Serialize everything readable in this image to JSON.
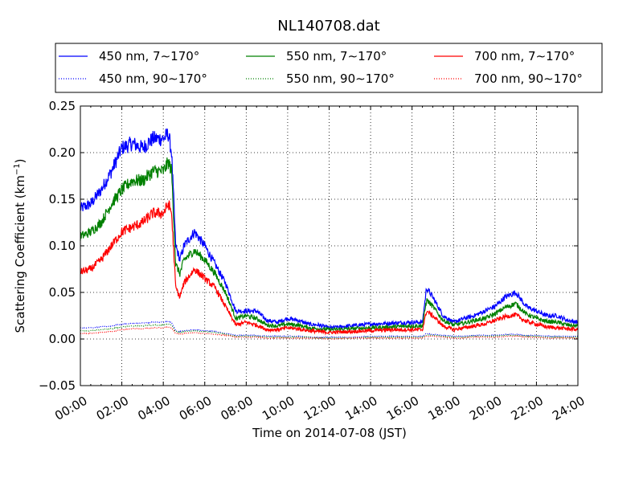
{
  "chart_data": {
    "type": "line",
    "title": "NL140708.dat",
    "xlabel": "Time on 2014-07-08 (JST)",
    "ylabel": "Scattering Coefficient (km",
    "ylabel_sup": "−1",
    "ylabel_tail": ")",
    "xlim": [
      "00:00",
      "24:00"
    ],
    "ylim": [
      -0.05,
      0.25
    ],
    "grid": true,
    "legend_position": "top",
    "x_ticks": [
      "00:00",
      "02:00",
      "04:00",
      "06:00",
      "08:00",
      "10:00",
      "12:00",
      "14:00",
      "16:00",
      "18:00",
      "20:00",
      "22:00",
      "24:00"
    ],
    "y_ticks": [
      "−0.05",
      "0.00",
      "0.05",
      "0.10",
      "0.15",
      "0.20",
      "0.25"
    ],
    "x_hours": [
      0,
      0.5,
      1,
      1.5,
      2,
      2.5,
      3,
      3.5,
      4,
      4.25,
      4.4,
      4.6,
      4.8,
      5,
      5.5,
      6,
      6.5,
      7,
      7.5,
      8,
      8.5,
      9,
      9.5,
      10,
      10.5,
      11,
      11.5,
      12,
      13,
      14,
      15,
      16,
      16.3,
      16.5,
      16.7,
      17,
      17.5,
      18,
      18.5,
      19,
      19.5,
      20,
      20.5,
      21,
      21.5,
      22,
      22.5,
      23,
      23.5,
      24
    ],
    "series": [
      {
        "name": "450 nm, 7∼170°",
        "color": "#0000ff",
        "style": "solid",
        "values": [
          0.14,
          0.145,
          0.16,
          0.18,
          0.205,
          0.21,
          0.205,
          0.215,
          0.215,
          0.22,
          0.2,
          0.1,
          0.085,
          0.1,
          0.115,
          0.1,
          0.08,
          0.06,
          0.03,
          0.03,
          0.03,
          0.02,
          0.018,
          0.022,
          0.02,
          0.016,
          0.015,
          0.012,
          0.014,
          0.016,
          0.017,
          0.018,
          0.018,
          0.018,
          0.055,
          0.045,
          0.025,
          0.018,
          0.022,
          0.025,
          0.03,
          0.035,
          0.045,
          0.05,
          0.035,
          0.03,
          0.025,
          0.025,
          0.02,
          0.018
        ]
      },
      {
        "name": "550 nm, 7∼170°",
        "color": "#008000",
        "style": "solid",
        "values": [
          0.11,
          0.115,
          0.125,
          0.145,
          0.16,
          0.17,
          0.17,
          0.18,
          0.18,
          0.19,
          0.18,
          0.08,
          0.07,
          0.085,
          0.095,
          0.085,
          0.07,
          0.05,
          0.022,
          0.025,
          0.022,
          0.015,
          0.014,
          0.016,
          0.015,
          0.012,
          0.011,
          0.01,
          0.011,
          0.012,
          0.013,
          0.014,
          0.014,
          0.014,
          0.042,
          0.035,
          0.02,
          0.015,
          0.017,
          0.02,
          0.022,
          0.027,
          0.034,
          0.038,
          0.027,
          0.022,
          0.019,
          0.018,
          0.015,
          0.014
        ]
      },
      {
        "name": "700 nm, 7∼170°",
        "color": "#ff0000",
        "style": "solid",
        "values": [
          0.072,
          0.075,
          0.085,
          0.1,
          0.115,
          0.12,
          0.125,
          0.135,
          0.135,
          0.145,
          0.135,
          0.055,
          0.045,
          0.06,
          0.075,
          0.065,
          0.055,
          0.035,
          0.015,
          0.018,
          0.015,
          0.01,
          0.01,
          0.012,
          0.011,
          0.009,
          0.008,
          0.007,
          0.008,
          0.009,
          0.01,
          0.01,
          0.01,
          0.01,
          0.03,
          0.025,
          0.014,
          0.01,
          0.012,
          0.014,
          0.016,
          0.02,
          0.024,
          0.026,
          0.019,
          0.016,
          0.013,
          0.012,
          0.011,
          0.01
        ]
      },
      {
        "name": "450 nm, 90∼170°",
        "color": "#0000ff",
        "style": "dotted",
        "values": [
          0.012,
          0.012,
          0.013,
          0.014,
          0.016,
          0.017,
          0.017,
          0.018,
          0.018,
          0.019,
          0.018,
          0.009,
          0.008,
          0.009,
          0.01,
          0.009,
          0.008,
          0.006,
          0.004,
          0.004,
          0.004,
          0.003,
          0.003,
          0.003,
          0.003,
          0.002,
          0.002,
          0.002,
          0.002,
          0.003,
          0.003,
          0.003,
          0.003,
          0.003,
          0.006,
          0.005,
          0.004,
          0.003,
          0.003,
          0.004,
          0.004,
          0.004,
          0.005,
          0.005,
          0.004,
          0.004,
          0.003,
          0.003,
          0.003,
          0.003
        ]
      },
      {
        "name": "550 nm, 90∼170°",
        "color": "#008000",
        "style": "dotted",
        "values": [
          0.009,
          0.009,
          0.01,
          0.011,
          0.013,
          0.014,
          0.014,
          0.015,
          0.015,
          0.016,
          0.015,
          0.008,
          0.007,
          0.008,
          0.009,
          0.008,
          0.007,
          0.005,
          0.003,
          0.003,
          0.003,
          0.002,
          0.002,
          0.002,
          0.002,
          0.002,
          0.001,
          0.001,
          0.001,
          0.002,
          0.002,
          0.002,
          0.002,
          0.002,
          0.004,
          0.004,
          0.003,
          0.002,
          0.002,
          0.003,
          0.003,
          0.003,
          0.004,
          0.004,
          0.003,
          0.003,
          0.002,
          0.002,
          0.002,
          0.002
        ]
      },
      {
        "name": "700 nm, 90∼170°",
        "color": "#ff0000",
        "style": "dotted",
        "values": [
          0.006,
          0.006,
          0.007,
          0.008,
          0.01,
          0.011,
          0.011,
          0.012,
          0.012,
          0.013,
          0.012,
          0.006,
          0.005,
          0.006,
          0.007,
          0.006,
          0.005,
          0.004,
          0.002,
          0.002,
          0.002,
          0.001,
          0.001,
          0.001,
          0.001,
          0.001,
          0.001,
          0.0,
          0.001,
          0.001,
          0.001,
          0.001,
          0.001,
          0.001,
          0.003,
          0.003,
          0.002,
          0.001,
          0.001,
          0.002,
          0.002,
          0.002,
          0.003,
          0.003,
          0.002,
          0.002,
          0.001,
          0.001,
          0.001,
          0.001
        ]
      }
    ]
  }
}
